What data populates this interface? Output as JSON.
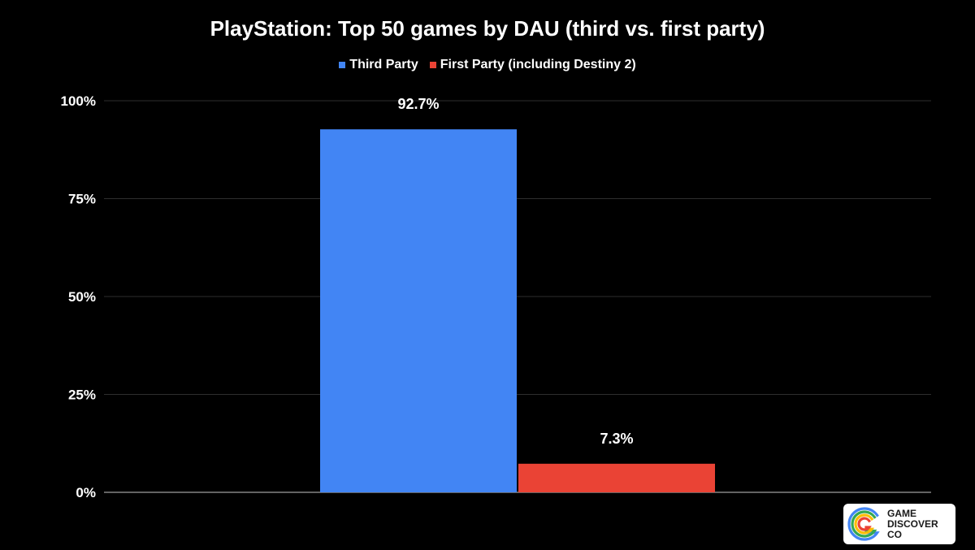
{
  "chart_data": {
    "type": "bar",
    "title": "PlayStation: Top 50 games by DAU (third vs. first party)",
    "categories": [
      ""
    ],
    "series": [
      {
        "name": "Third Party",
        "values": [
          92.7
        ],
        "labels": [
          "92.7%"
        ],
        "color": "#4285f4"
      },
      {
        "name": "First Party (including Destiny 2)",
        "values": [
          7.3
        ],
        "labels": [
          "7.3%"
        ],
        "color": "#ea4335"
      }
    ],
    "ylim": [
      0,
      100
    ],
    "yticks": [
      0,
      25,
      50,
      75,
      100
    ],
    "ytick_labels": [
      "0%",
      "25%",
      "50%",
      "75%",
      "100%"
    ],
    "xlabel": "",
    "ylabel": "",
    "legend": "top-center",
    "grid": true
  },
  "branding": {
    "logo_lines": [
      "GAME",
      "DISCOVER",
      "CO"
    ],
    "logo_colors": [
      "#4285f4",
      "#34a853",
      "#fbbc05",
      "#ea4335"
    ]
  }
}
